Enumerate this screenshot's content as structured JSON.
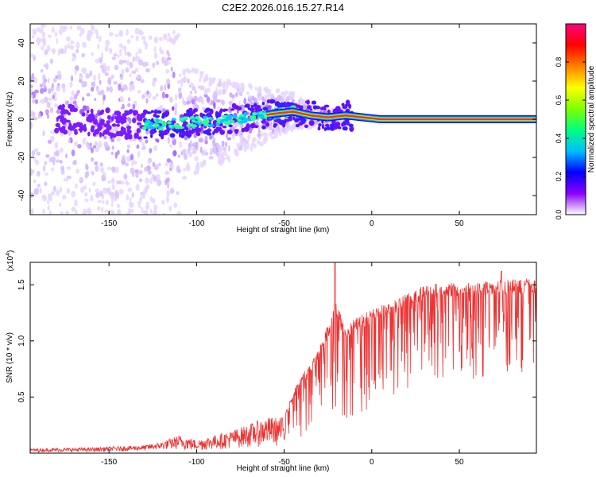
{
  "chart_data": [
    {
      "type": "heatmap",
      "title": "C2E2.2026.016.15.27.R14",
      "xlabel": "Height of straight line (km)",
      "ylabel": "Frequency (Hz)",
      "xlim": [
        -195,
        94
      ],
      "ylim": [
        -50,
        50
      ],
      "xticks": [
        -150,
        -100,
        -50,
        0,
        50
      ],
      "xtick_labels": [
        "-150",
        "-100",
        "-50",
        "0",
        "50"
      ],
      "yticks": [
        -40,
        -20,
        0,
        20,
        40
      ],
      "ytick_labels": [
        "-40",
        "-20",
        "0",
        "20",
        "40"
      ],
      "ridge": {
        "description": "Dominant spectral ridge (Hz) vs height (km)",
        "x": [
          -175,
          -150,
          -130,
          -110,
          -90,
          -70,
          -55,
          -45,
          -35,
          -25,
          -15,
          -5,
          5,
          10,
          20,
          50,
          94
        ],
        "y": [
          0,
          -2,
          -3,
          -2,
          -1,
          1,
          3,
          4,
          2,
          1,
          2,
          1,
          0,
          0,
          0,
          0,
          0
        ]
      },
      "colorbar": {
        "label": "Normalized spectral amplitude",
        "range": [
          0,
          1
        ],
        "ticks": [
          0.0,
          0.2,
          0.4,
          0.6,
          0.8
        ],
        "tick_labels": [
          "0.0",
          "0.2",
          "0.4",
          "0.6",
          "0.8"
        ],
        "colormap": [
          "#ffffff",
          "#8a00ff",
          "#0000ff",
          "#00bfff",
          "#00ff80",
          "#80ff00",
          "#ffff00",
          "#ff8000",
          "#ff0000",
          "#ff0080"
        ]
      }
    },
    {
      "type": "line",
      "xlabel": "Height of straight line (km)",
      "ylabel": "SNR (10 * v/v)",
      "yscale_label": "(x10",
      "yscale_exp": "4",
      "yscale_close": ")",
      "xlim": [
        -195,
        94
      ],
      "ylim": [
        0,
        1.7
      ],
      "xticks": [
        -150,
        -100,
        -50,
        0,
        50
      ],
      "xtick_labels": [
        "-150",
        "-100",
        "-50",
        "0",
        "50"
      ],
      "yticks": [
        0.5,
        1.0,
        1.5
      ],
      "ytick_labels": [
        "0.5",
        "1.0",
        "1.5"
      ],
      "color": "#ee3333",
      "envelope": {
        "description": "Upper envelope / baseline of SNR (units of 10^4)",
        "x": [
          -195,
          -160,
          -130,
          -120,
          -110,
          -100,
          -80,
          -60,
          -50,
          -45,
          -40,
          -35,
          -30,
          -25,
          -20,
          -15,
          -10,
          0,
          10,
          20,
          30,
          40,
          60,
          80,
          94
        ],
        "upper": [
          0.04,
          0.05,
          0.07,
          0.1,
          0.16,
          0.12,
          0.2,
          0.32,
          0.32,
          0.55,
          0.7,
          0.8,
          0.95,
          1.15,
          1.35,
          1.1,
          1.2,
          1.28,
          1.35,
          1.42,
          1.5,
          1.52,
          1.53,
          1.55,
          1.55
        ],
        "lower": [
          0.01,
          0.01,
          0.02,
          0.03,
          0.03,
          0.02,
          0.04,
          0.06,
          0.06,
          0.1,
          0.15,
          0.2,
          0.22,
          0.25,
          0.28,
          0.3,
          0.33,
          0.4,
          0.5,
          0.58,
          0.63,
          0.65,
          0.66,
          0.68,
          0.7
        ]
      },
      "spikes": [
        {
          "x": -21,
          "y": 1.7
        },
        {
          "x": 74,
          "y": 1.62
        }
      ]
    }
  ]
}
